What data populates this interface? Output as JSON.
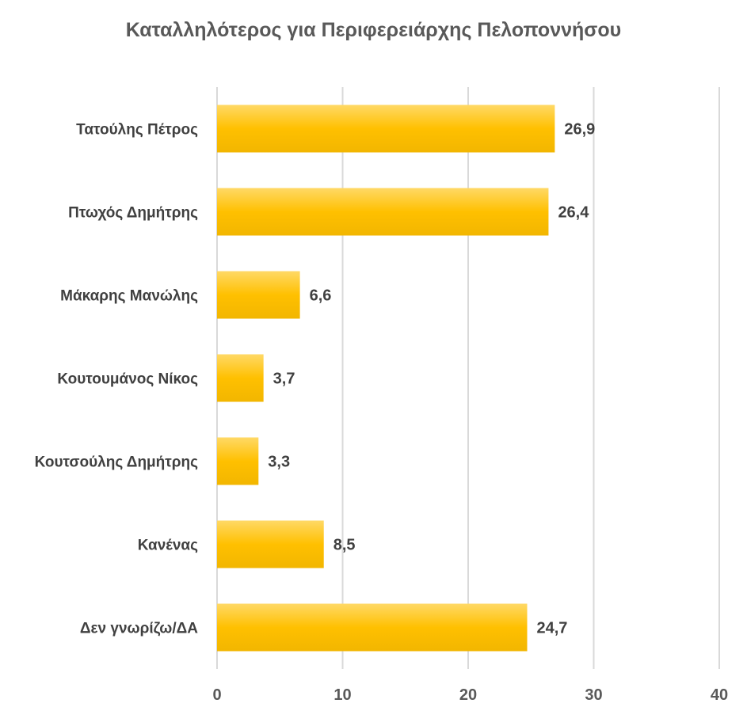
{
  "chart_data": {
    "type": "bar",
    "orientation": "horizontal",
    "title": "Καταλληλότερος για Περιφερειάρχης Πελοποννήσου",
    "categories": [
      "Τατούλης Πέτρος",
      "Πτωχός Δημήτρης",
      "Μάκαρης Μανώλης",
      "Κουτουμάνος Νίκος",
      "Κουτσούλης Δημήτρης",
      "Κανένας",
      "Δεν γνωρίζω/ΔΑ"
    ],
    "values": [
      26.9,
      26.4,
      6.6,
      3.7,
      3.3,
      8.5,
      24.7
    ],
    "value_labels": [
      "26,9",
      "26,4",
      "6,6",
      "3,7",
      "3,3",
      "8,5",
      "24,7"
    ],
    "xlim": [
      0,
      40
    ],
    "xticks": [
      0,
      10,
      20,
      30,
      40
    ],
    "grid": "vertical",
    "legend": "none",
    "colors": {
      "bar": "#ffc000",
      "bar_light": "#ffd966",
      "grid": "#d9d9d9",
      "text": "#404040",
      "title": "#595959"
    }
  }
}
